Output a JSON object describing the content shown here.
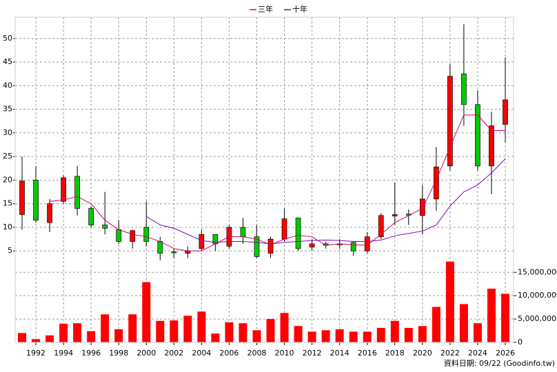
{
  "chart_data": [
    {
      "type": "candlestick",
      "legend": "top",
      "up_color": "#ff0000",
      "down_color": "#00cc00",
      "x": [
        1991,
        1992,
        1993,
        1994,
        1995,
        1996,
        1997,
        1998,
        1999,
        2000,
        2001,
        2002,
        2003,
        2004,
        2005,
        2006,
        2007,
        2008,
        2009,
        2010,
        2011,
        2012,
        2013,
        2014,
        2015,
        2016,
        2017,
        2018,
        2019,
        2020,
        2021,
        2022,
        2023,
        2024,
        2025,
        2026
      ],
      "open": [
        12.7,
        20,
        11,
        15.5,
        20.8,
        14,
        10.5,
        9.5,
        7,
        10,
        7,
        4.8,
        4.5,
        5.5,
        8.5,
        6,
        10,
        8,
        4.5,
        7.5,
        12,
        5.8,
        6.5,
        6.5,
        6.8,
        5,
        8,
        12.4,
        12.8,
        12.5,
        16,
        23,
        42.5,
        36,
        23,
        31.8
      ],
      "high": [
        25,
        23,
        16,
        21,
        23,
        14.5,
        17.5,
        11.5,
        9.5,
        15.5,
        8,
        5.5,
        6,
        9.5,
        8.5,
        10.5,
        12,
        10.5,
        8,
        14,
        12,
        7.5,
        7,
        7.5,
        7,
        9,
        13,
        19.5,
        13.8,
        19,
        27,
        44.5,
        53,
        39,
        34.5,
        46
      ],
      "low": [
        9.5,
        11,
        9,
        15,
        12.5,
        10,
        8.5,
        6.5,
        5.5,
        6,
        3,
        3.5,
        3.5,
        5,
        5,
        5.5,
        6.5,
        3.5,
        3.5,
        7,
        5,
        5,
        5.5,
        5.5,
        4,
        4.5,
        7.5,
        10.5,
        10.5,
        8.5,
        13.5,
        22,
        31.5,
        22,
        17,
        28
      ],
      "close": [
        19.8,
        11.5,
        15,
        20.5,
        14,
        10.5,
        9.8,
        7,
        9.3,
        7,
        4.5,
        4.6,
        5,
        8.5,
        6.5,
        10,
        8,
        3.8,
        7.5,
        11.8,
        5.5,
        6.5,
        6.2,
        6.3,
        5,
        8,
        12.5,
        12.7,
        12.6,
        16,
        22.8,
        42,
        36,
        23,
        31.5,
        37
      ],
      "series": [
        {
          "name": "三年",
          "color": "#cc0066",
          "values": [
            null,
            null,
            15.5,
            15.8,
            16.5,
            15,
            11.5,
            9.5,
            8.5,
            8,
            7,
            5.5,
            5,
            5,
            6.5,
            8,
            8,
            7.5,
            6.3,
            7.5,
            8.3,
            8,
            6.2,
            6.5,
            6.3,
            6.2,
            8.5,
            11,
            12.5,
            14,
            20,
            27,
            33.8,
            33.8,
            30.5,
            30.5
          ]
        },
        {
          "name": "十年",
          "color": "#8000c0",
          "values": [
            null,
            null,
            null,
            null,
            null,
            null,
            null,
            null,
            null,
            12.3,
            10.5,
            9.8,
            8.5,
            7.2,
            6.8,
            7,
            7,
            6.8,
            6.5,
            6.8,
            7,
            7.2,
            7.3,
            7.2,
            7,
            7,
            7.3,
            8.2,
            8.7,
            9.2,
            10.5,
            14.5,
            17.5,
            19,
            21.5,
            24.5
          ]
        }
      ],
      "xlim": [
        1990.5,
        2026.6
      ],
      "ylim": [
        2.7,
        54.5
      ],
      "yticks": [
        5,
        10,
        15,
        20,
        25,
        30,
        35,
        40,
        45,
        50
      ],
      "grid": true
    },
    {
      "type": "bar",
      "color": "#ff0000",
      "x": [
        1991,
        1992,
        1993,
        1994,
        1995,
        1996,
        1997,
        1998,
        1999,
        2000,
        2001,
        2002,
        2003,
        2004,
        2005,
        2006,
        2007,
        2008,
        2009,
        2010,
        2011,
        2012,
        2013,
        2014,
        2015,
        2016,
        2017,
        2018,
        2019,
        2020,
        2021,
        2022,
        2023,
        2024,
        2025,
        2026
      ],
      "values": [
        2000000,
        700000,
        1500000,
        4000000,
        4100000,
        2400000,
        6000000,
        2800000,
        6000000,
        12900000,
        4600000,
        4700000,
        5700000,
        6600000,
        1900000,
        4300000,
        4100000,
        2600000,
        5000000,
        6300000,
        3500000,
        2300000,
        2600000,
        2800000,
        2300000,
        2300000,
        3100000,
        4600000,
        3100000,
        3500000,
        7600000,
        17300000,
        8200000,
        4100000,
        11500000,
        10400000
      ],
      "xlim": [
        1990.5,
        2026.6
      ],
      "xticks": [
        1992,
        1994,
        1996,
        1998,
        2000,
        2002,
        2004,
        2006,
        2008,
        2010,
        2012,
        2014,
        2016,
        2018,
        2020,
        2022,
        2024,
        2026
      ],
      "ylim": [
        0,
        17400000
      ],
      "yticks": [
        0,
        {
          "value": 5000000,
          "label": "5,000,000"
        },
        {
          "value": 10000000,
          "label": "10,000,000"
        },
        {
          "value": 15000000,
          "label": "15,000,000"
        }
      ],
      "grid": true
    }
  ],
  "footer": "資料日期: 09/22 (Goodinfo.tw)"
}
